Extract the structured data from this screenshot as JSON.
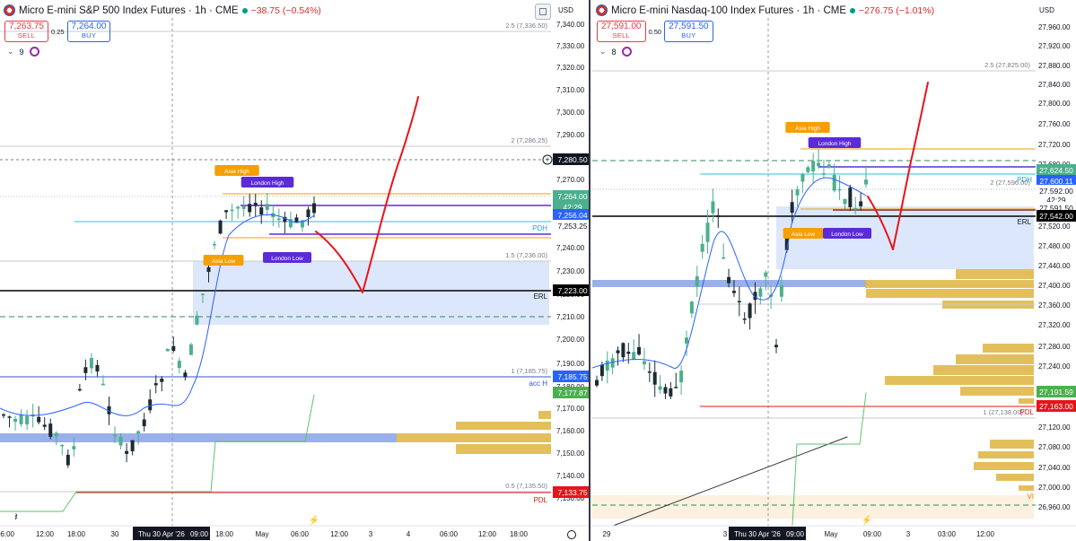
{
  "left": {
    "title": "Micro E-mini S&P 500 Index Futures · 1h · CME",
    "change": "−38.75 (−0.54%)",
    "sell_price": "7,263.75",
    "sell_label": "SELL",
    "spread": "0.25",
    "buy_price": "7,264.00",
    "buy_label": "BUY",
    "indicator_count": "9",
    "currency": "USD",
    "axis_ticks": [
      "7,340.00",
      "7,330.00",
      "7,320.00",
      "7,310.00",
      "7,300.00",
      "7,290.00",
      "7,270.00",
      "7,260.00",
      "7,240.00",
      "7,230.00",
      "7,220.00",
      "7,210.00",
      "7,200.00",
      "7,190.00",
      "7,180.00",
      "7,170.00",
      "7,160.00",
      "7,150.00",
      "7,140.00",
      "7,130.00"
    ],
    "price_tags": {
      "crosshair": "7,280.50",
      "last_price": "7,264.00",
      "countdown": "42:29",
      "pdh_level": "7,256.04",
      "low_level": "7,253.25",
      "erl_level": "7,223.00",
      "acch_level": "7,185.75",
      "green_level": "7,177.87",
      "pdl_level": "7,133.75"
    },
    "fib_labels": [
      "2.5 (7,336.50)",
      "2 (7,286.25)",
      "1.5 (7,236.00)",
      "1 (7,185.75)",
      "0.5 (7,135.50)"
    ],
    "line_labels": {
      "pdh": "PDH",
      "erl": "ERL",
      "acch": "acc H",
      "pdl": "PDL"
    },
    "session_labels": {
      "asia_high": "Asia High",
      "london_high": "London High",
      "asia_low": "Asia Low",
      "london_low": "London Low"
    },
    "time_labels": [
      "06:00",
      "12:00",
      "18:00",
      "30",
      "Thu 30 Apr '26",
      "09:00",
      "18:00",
      "May",
      "06:00",
      "12:00",
      "3",
      "4",
      "06:00",
      "12:00",
      "18:00"
    ]
  },
  "right": {
    "title": "Micro E-mini Nasdaq-100 Index Futures · 1h · CME",
    "change": "−276.75 (−1.01%)",
    "sell_price": "27,591.00",
    "sell_label": "SELL",
    "spread": "0.50",
    "buy_price": "27,591.50",
    "buy_label": "BUY",
    "indicator_count": "8",
    "currency": "USD",
    "axis_ticks": [
      "27,960.00",
      "27,920.00",
      "27,880.00",
      "27,840.00",
      "27,800.00",
      "27,760.00",
      "27,720.00",
      "27,680.00",
      "27,520.00",
      "27,480.00",
      "27,440.00",
      "27,400.00",
      "27,360.00",
      "27,320.00",
      "27,280.00",
      "27,240.00",
      "27,120.00",
      "27,080.00",
      "27,040.00",
      "27,000.00",
      "26,960.00"
    ],
    "price_tags": {
      "high_level": "27,624.50",
      "pdh_level": "27,600.11",
      "last_price": "27,592.00",
      "countdown": "42:29",
      "low_level": "27,591.50",
      "erl_level": "27,542.00",
      "green_level": "27,191.59",
      "pdl_level": "27,163.00"
    },
    "fib_labels": [
      "2.5 (27,825.00)",
      "2 (27,596.00)",
      "1 (27,138.00)"
    ],
    "line_labels": {
      "pdh": "PDH",
      "erl": "ERL",
      "pdl": "PDL",
      "vi": "VI"
    },
    "session_labels": {
      "asia_high": "Asia High",
      "london_high": "London High",
      "asia_low": "Asia Low",
      "london_low": "London Low"
    },
    "time_labels": [
      "29",
      "3",
      "Thu 30 Apr '26",
      "09:00",
      "May",
      "09:00",
      "3",
      "03:00",
      "12:00"
    ]
  },
  "colors": {
    "bull": "#4caf8e",
    "bear": "#1c2a33",
    "ma": "#2962ff",
    "orange": "#f59f00",
    "purple": "#5b2bd8",
    "cyan": "#26c6da",
    "red_draw": "#e8141b",
    "zone": "#dbe6fb",
    "volume": "#e0b84a",
    "green_line": "#5cc46b"
  }
}
